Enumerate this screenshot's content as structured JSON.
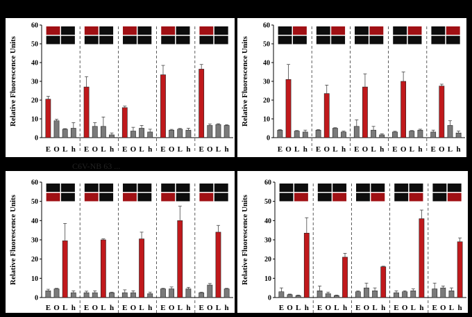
{
  "stray_text": "C6V-NB 63 ...",
  "chart_data": [
    {
      "type": "bar",
      "ylabel": "Relative Fluorescence Units",
      "ylim": [
        0,
        60
      ],
      "yticks": [
        0,
        10,
        20,
        30,
        40,
        50,
        60
      ],
      "categories": [
        "E",
        "O",
        "L",
        "h"
      ],
      "highlight_index": 0,
      "colors": {
        "highlight": "#c0191c",
        "normal": "#7a7a7a"
      },
      "groups": [
        {
          "values": [
            20.5,
            9.0,
            4.5,
            5.0
          ],
          "errors": [
            1.5,
            0.8,
            0.3,
            3.0
          ]
        },
        {
          "values": [
            27.0,
            6.0,
            6.0,
            1.5
          ],
          "errors": [
            5.5,
            2.0,
            5.0,
            1.0
          ]
        },
        {
          "values": [
            16.0,
            3.5,
            5.0,
            3.0
          ],
          "errors": [
            0.8,
            2.0,
            1.5,
            1.5
          ]
        },
        {
          "values": [
            33.5,
            4.0,
            4.5,
            4.0
          ],
          "errors": [
            5.0,
            0.4,
            0.4,
            1.0
          ]
        },
        {
          "values": [
            36.5,
            6.5,
            7.0,
            6.5
          ],
          "errors": [
            2.5,
            0.8,
            0.4,
            0.4
          ]
        }
      ]
    },
    {
      "type": "bar",
      "ylabel": "Relative Fluorescence Units",
      "ylim": [
        0,
        60
      ],
      "yticks": [
        0,
        10,
        20,
        30,
        40,
        50,
        60
      ],
      "categories": [
        "E",
        "O",
        "L",
        "h"
      ],
      "highlight_index": 1,
      "colors": {
        "highlight": "#c0191c",
        "normal": "#7a7a7a"
      },
      "groups": [
        {
          "values": [
            4.0,
            31.0,
            3.5,
            3.0
          ],
          "errors": [
            0.3,
            8.0,
            0.3,
            1.0
          ]
        },
        {
          "values": [
            4.0,
            23.5,
            5.0,
            3.0
          ],
          "errors": [
            0.3,
            4.5,
            0.3,
            0.5
          ]
        },
        {
          "values": [
            6.0,
            27.0,
            4.0,
            1.5
          ],
          "errors": [
            3.5,
            7.0,
            2.0,
            0.5
          ]
        },
        {
          "values": [
            3.0,
            30.0,
            3.5,
            4.0
          ],
          "errors": [
            0.4,
            5.0,
            0.3,
            0.5
          ]
        },
        {
          "values": [
            3.0,
            27.5,
            6.5,
            2.5
          ],
          "errors": [
            1.0,
            1.0,
            2.5,
            1.0
          ]
        }
      ]
    },
    {
      "type": "bar",
      "ylabel": "Relative Fluorescence Units",
      "ylim": [
        0,
        60
      ],
      "yticks": [
        0,
        10,
        20,
        30,
        40,
        50,
        60
      ],
      "categories": [
        "E",
        "O",
        "L",
        "h"
      ],
      "highlight_index": 2,
      "colors": {
        "highlight": "#c0191c",
        "normal": "#7a7a7a"
      },
      "groups": [
        {
          "values": [
            3.5,
            4.5,
            29.5,
            2.5
          ],
          "errors": [
            0.8,
            0.3,
            9.0,
            1.0
          ]
        },
        {
          "values": [
            2.5,
            2.5,
            30.0,
            2.5
          ],
          "errors": [
            0.8,
            1.0,
            0.5,
            0.3
          ]
        },
        {
          "values": [
            2.5,
            2.5,
            30.5,
            2.0
          ],
          "errors": [
            1.5,
            1.0,
            3.5,
            0.8
          ]
        },
        {
          "values": [
            4.5,
            4.5,
            40.0,
            4.5
          ],
          "errors": [
            0.3,
            1.0,
            7.5,
            0.8
          ]
        },
        {
          "values": [
            2.5,
            6.5,
            34.0,
            4.5
          ],
          "errors": [
            0.3,
            0.8,
            3.5,
            0.3
          ]
        }
      ]
    },
    {
      "type": "bar",
      "ylabel": "Relative Fluorescence Units",
      "ylim": [
        0,
        60
      ],
      "yticks": [
        0,
        10,
        20,
        30,
        40,
        50,
        60
      ],
      "categories": [
        "E",
        "O",
        "L",
        "h"
      ],
      "highlight_index": 3,
      "colors": {
        "highlight": "#c0191c",
        "normal": "#7a7a7a"
      },
      "groups": [
        {
          "values": [
            3.0,
            1.5,
            1.0,
            33.5
          ],
          "errors": [
            2.0,
            0.3,
            0.3,
            8.0
          ]
        },
        {
          "values": [
            3.5,
            2.0,
            1.0,
            21.0
          ],
          "errors": [
            2.5,
            0.8,
            0.3,
            2.0
          ]
        },
        {
          "values": [
            3.0,
            5.0,
            3.5,
            16.0
          ],
          "errors": [
            0.4,
            2.5,
            1.5,
            0.3
          ]
        },
        {
          "values": [
            2.5,
            3.0,
            3.5,
            41.0
          ],
          "errors": [
            1.0,
            0.5,
            1.0,
            4.5
          ]
        },
        {
          "values": [
            4.5,
            5.0,
            3.5,
            29.0
          ],
          "errors": [
            3.0,
            1.0,
            1.5,
            2.0
          ]
        }
      ]
    }
  ]
}
